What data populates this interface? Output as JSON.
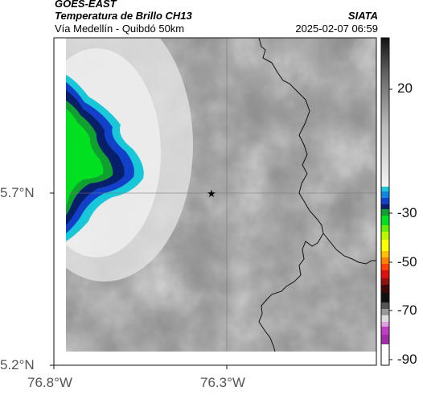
{
  "header": {
    "satellite": "GOES-EAST",
    "product": "Temperatura de Brillo CH13",
    "region": "Vía Medellín - Quibdó 50km",
    "org": "SIATA",
    "datetime": "2025-02-07 06:59"
  },
  "axes": {
    "lat_ticks": [
      "5.7°N",
      "5.2°N"
    ],
    "lon_ticks": [
      "76.8°W",
      "76.3°W"
    ]
  },
  "colorbar": {
    "ticks": [
      "20",
      "-30",
      "-50",
      "-70",
      "-90"
    ],
    "colors": {
      "warm_gray_dark": "#1a1a1a",
      "warm_gray_light": "#e8e8e8",
      "cyan": "#19c8d8",
      "blue": "#1340c8",
      "navy": "#08206a",
      "green": "#00e020",
      "yellow": "#ffff00",
      "orange": "#ff8000",
      "red": "#e01010",
      "magenta": "#c040c0"
    }
  },
  "marker": {
    "icon": "star-icon"
  }
}
